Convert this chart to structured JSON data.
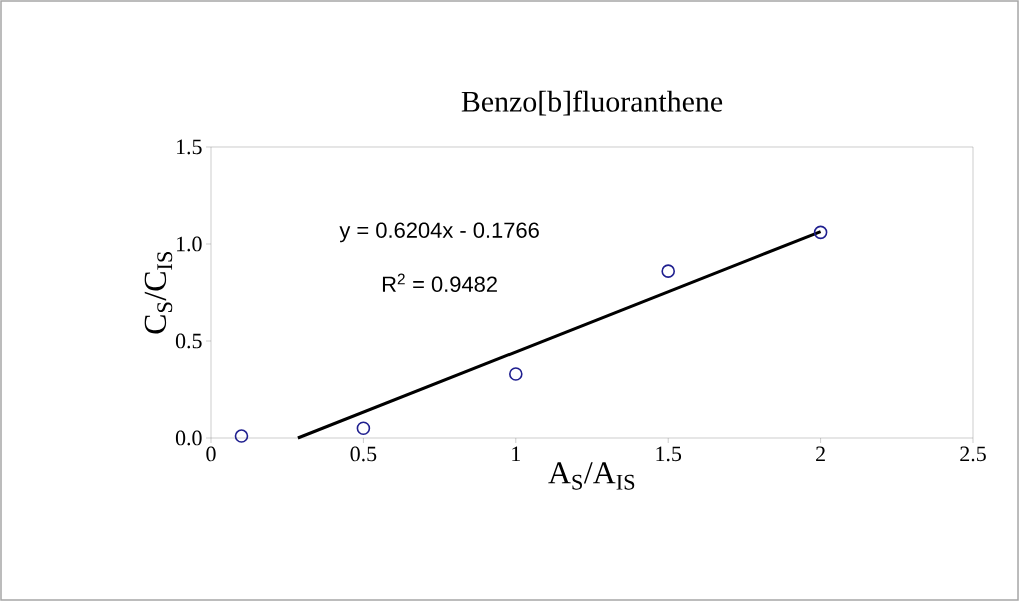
{
  "chart_data": {
    "type": "scatter",
    "title": "Benzo[b]fluoranthene",
    "xlabel": "A$_{S}$/A$_{IS}$",
    "ylabel": "C$_{S}$/C$_{IS}$",
    "xlim": [
      0,
      2.5
    ],
    "xticks": [
      0,
      0.5,
      1,
      1.5,
      2,
      2.5
    ],
    "ylim": [
      0,
      1.5
    ],
    "yticks": [
      {
        "value": 0,
        "label": "0.0"
      },
      0.5,
      {
        "value": 1,
        "label": "1.0"
      },
      1.5
    ],
    "grid": false,
    "annotations": [
      "y = 0.6204x - 0.1766",
      "R$^{2}$ = 0.9482"
    ],
    "series": [
      {
        "color": "#1f1f8f",
        "marker": "circle",
        "x": [
          0.1,
          0.5,
          1,
          1.5,
          2
        ],
        "values": [
          0.01,
          0.05,
          0.33,
          0.86,
          1.06
        ]
      },
      {
        "type": "line",
        "color": "#000000",
        "marker": "none",
        "line_style": "solid",
        "x": [
          0.285,
          2
        ],
        "values": [
          0,
          1.064
        ]
      }
    ]
  }
}
